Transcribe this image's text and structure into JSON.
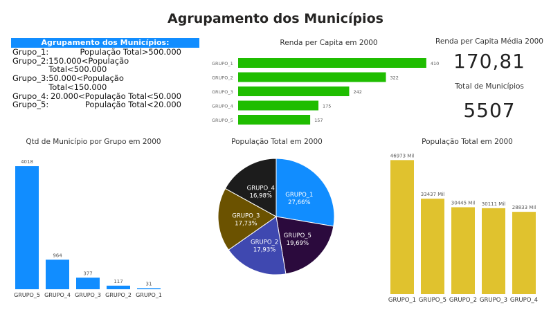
{
  "title": "Agrupamento dos Municípios",
  "groups_legend": {
    "header": "Agrupamento dos Municípios:",
    "rows": [
      {
        "name": "Grupo_1:",
        "rule": "População Total>500.000"
      },
      {
        "name": "Grupo_2:",
        "rule": "150.000<População Total<500.000"
      },
      {
        "name": "Grupo_3:",
        "rule": "50.000<População Total<150.000"
      },
      {
        "name": "Grupo_4:",
        "rule": "20.000<População Total<50.000"
      },
      {
        "name": "Grupo_5:",
        "rule": "População Total<20.000"
      }
    ]
  },
  "kpis": {
    "renda_label": "Renda per Capita Média 2000",
    "renda_value": "170,81",
    "municipios_label": "Total de Municípios",
    "municipios_value": "5507"
  },
  "colors": {
    "green": "#1fbd00",
    "blue": "#118dff",
    "gold": "#e0c22e",
    "pie": [
      "#118dff",
      "#2b0a3d",
      "#3f48b0",
      "#6b5200",
      "#1c1c1c"
    ]
  },
  "chart_data": [
    {
      "id": "renda",
      "type": "bar",
      "orientation": "horizontal",
      "title": "Renda per Capita em 2000",
      "categories": [
        "GRUPO_1",
        "GRUPO_2",
        "GRUPO_3",
        "GRUPO_4",
        "GRUPO_5"
      ],
      "values": [
        410,
        322,
        242,
        175,
        157
      ],
      "labels": [
        "410",
        "322",
        "242",
        "175",
        "157"
      ],
      "xlim": [
        0,
        460
      ]
    },
    {
      "id": "qtd",
      "type": "bar",
      "title": "Qtd de Município por Grupo em 2000",
      "categories": [
        "GRUPO_5",
        "GRUPO_4",
        "GRUPO_3",
        "GRUPO_2",
        "GRUPO_1"
      ],
      "values": [
        4018,
        964,
        377,
        117,
        31
      ],
      "labels": [
        "4018",
        "964",
        "377",
        "117",
        "31"
      ],
      "ylim": [
        0,
        4200
      ]
    },
    {
      "id": "pie",
      "type": "pie",
      "title": "População Total em 2000",
      "slices": [
        {
          "name": "GRUPO_1",
          "value": 27.66,
          "label": "27,66%"
        },
        {
          "name": "GRUPO_5",
          "value": 19.69,
          "label": "19,69%"
        },
        {
          "name": "GRUPO_2",
          "value": 17.93,
          "label": "17,93%"
        },
        {
          "name": "GRUPO_3",
          "value": 17.73,
          "label": "17,73%"
        },
        {
          "name": "GRUPO_4",
          "value": 16.98,
          "label": "16,98%"
        }
      ]
    },
    {
      "id": "pop",
      "type": "bar",
      "title": "População Total em 2000",
      "categories": [
        "GRUPO_1",
        "GRUPO_5",
        "GRUPO_2",
        "GRUPO_3",
        "GRUPO_4"
      ],
      "values": [
        46973,
        33437,
        30445,
        30111,
        28833
      ],
      "labels": [
        "46973 Mil",
        "33437 Mil",
        "30445 Mil",
        "30111 Mil",
        "28833 Mil"
      ],
      "ylim": [
        0,
        49000
      ]
    }
  ]
}
